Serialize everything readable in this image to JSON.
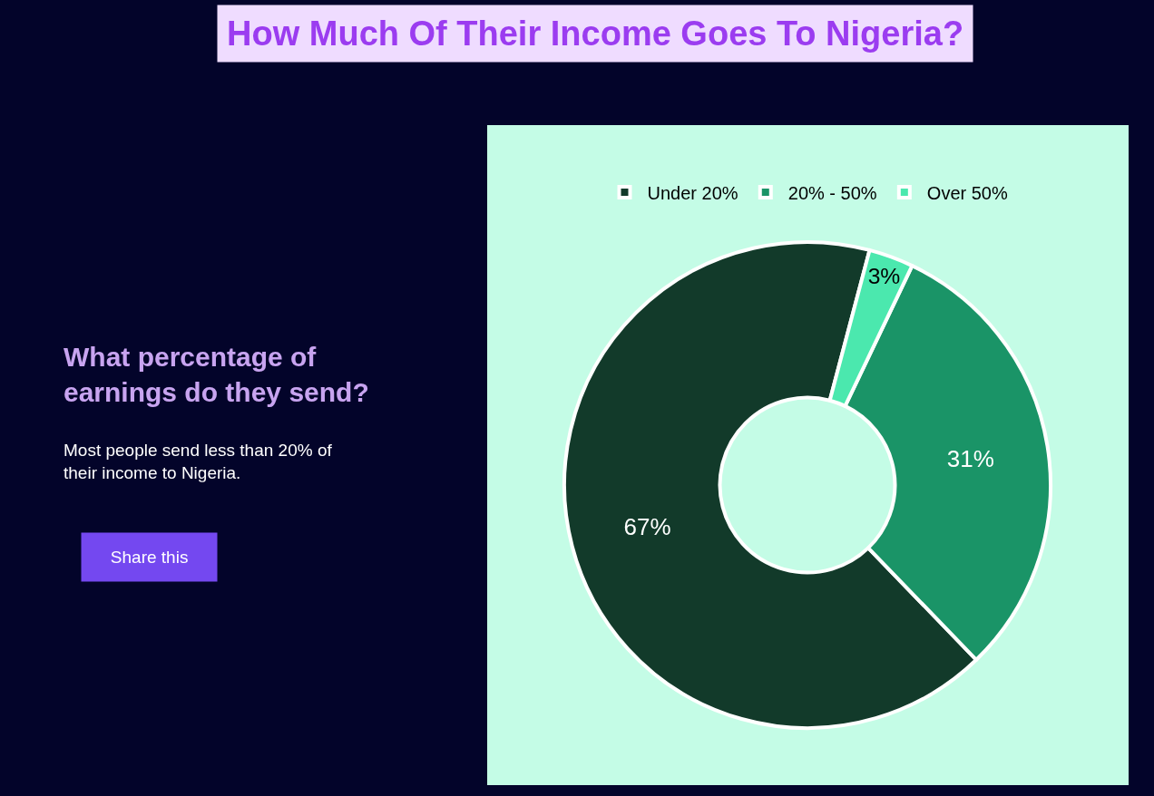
{
  "chart_data": {
    "type": "donut",
    "title": "How Much Of Their Income Goes To Nigeria?",
    "subtitle": "What percentage of earnings do they send?",
    "categories": [
      "Under 20%",
      "20% - 50%",
      "Over 50%"
    ],
    "values": [
      67,
      31,
      3
    ],
    "value_labels": [
      "67%",
      "31%",
      "3%"
    ],
    "colors": [
      "#123a2a",
      "#1a9467",
      "#4be8ae"
    ],
    "legend": "top",
    "annotations": [
      "Most people send less than 20% of their income to Nigeria.",
      "Share this"
    ]
  }
}
